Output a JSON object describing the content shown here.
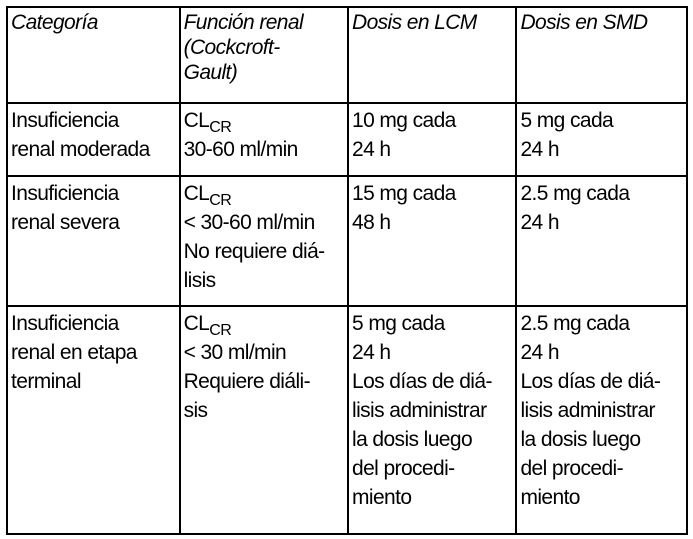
{
  "headers": [
    [
      "Categoría"
    ],
    [
      "Función renal",
      "(Cockcroft-",
      "Gault)"
    ],
    [
      "Dosis en LCM"
    ],
    [
      "Dosis en SMD"
    ]
  ],
  "rows": [
    {
      "categoria": [
        "Insuficiencia",
        "renal moderada"
      ],
      "clcr": {
        "base": "CL",
        "sub": "CR"
      },
      "funcion": [
        "30-60 ml/min"
      ],
      "lcm": [
        "10 mg cada",
        "24 h"
      ],
      "smd": [
        "5 mg cada",
        "24 h"
      ]
    },
    {
      "categoria": [
        "Insuficiencia",
        "renal severa"
      ],
      "clcr": {
        "base": "CL",
        "sub": "CR"
      },
      "funcion": [
        "< 30-60 ml/min",
        "No requiere diá-",
        "lisis"
      ],
      "lcm": [
        "15 mg cada",
        "48 h"
      ],
      "smd": [
        "2.5 mg cada",
        "24 h"
      ]
    },
    {
      "categoria": [
        "Insuficiencia",
        "renal en etapa",
        "terminal"
      ],
      "clcr": {
        "base": "CL",
        "sub": "CR"
      },
      "funcion": [
        "< 30 ml/min",
        "Requiere diáli-",
        "sis"
      ],
      "lcm": [
        "5 mg cada",
        "24 h",
        "Los días de diá-",
        "lisis administrar",
        "la dosis luego",
        "del procedi-",
        "miento"
      ],
      "smd": [
        "2.5 mg cada",
        "24 h",
        "Los días de diá-",
        "lisis administrar",
        "la dosis luego",
        "del procedi-",
        "miento"
      ]
    }
  ]
}
